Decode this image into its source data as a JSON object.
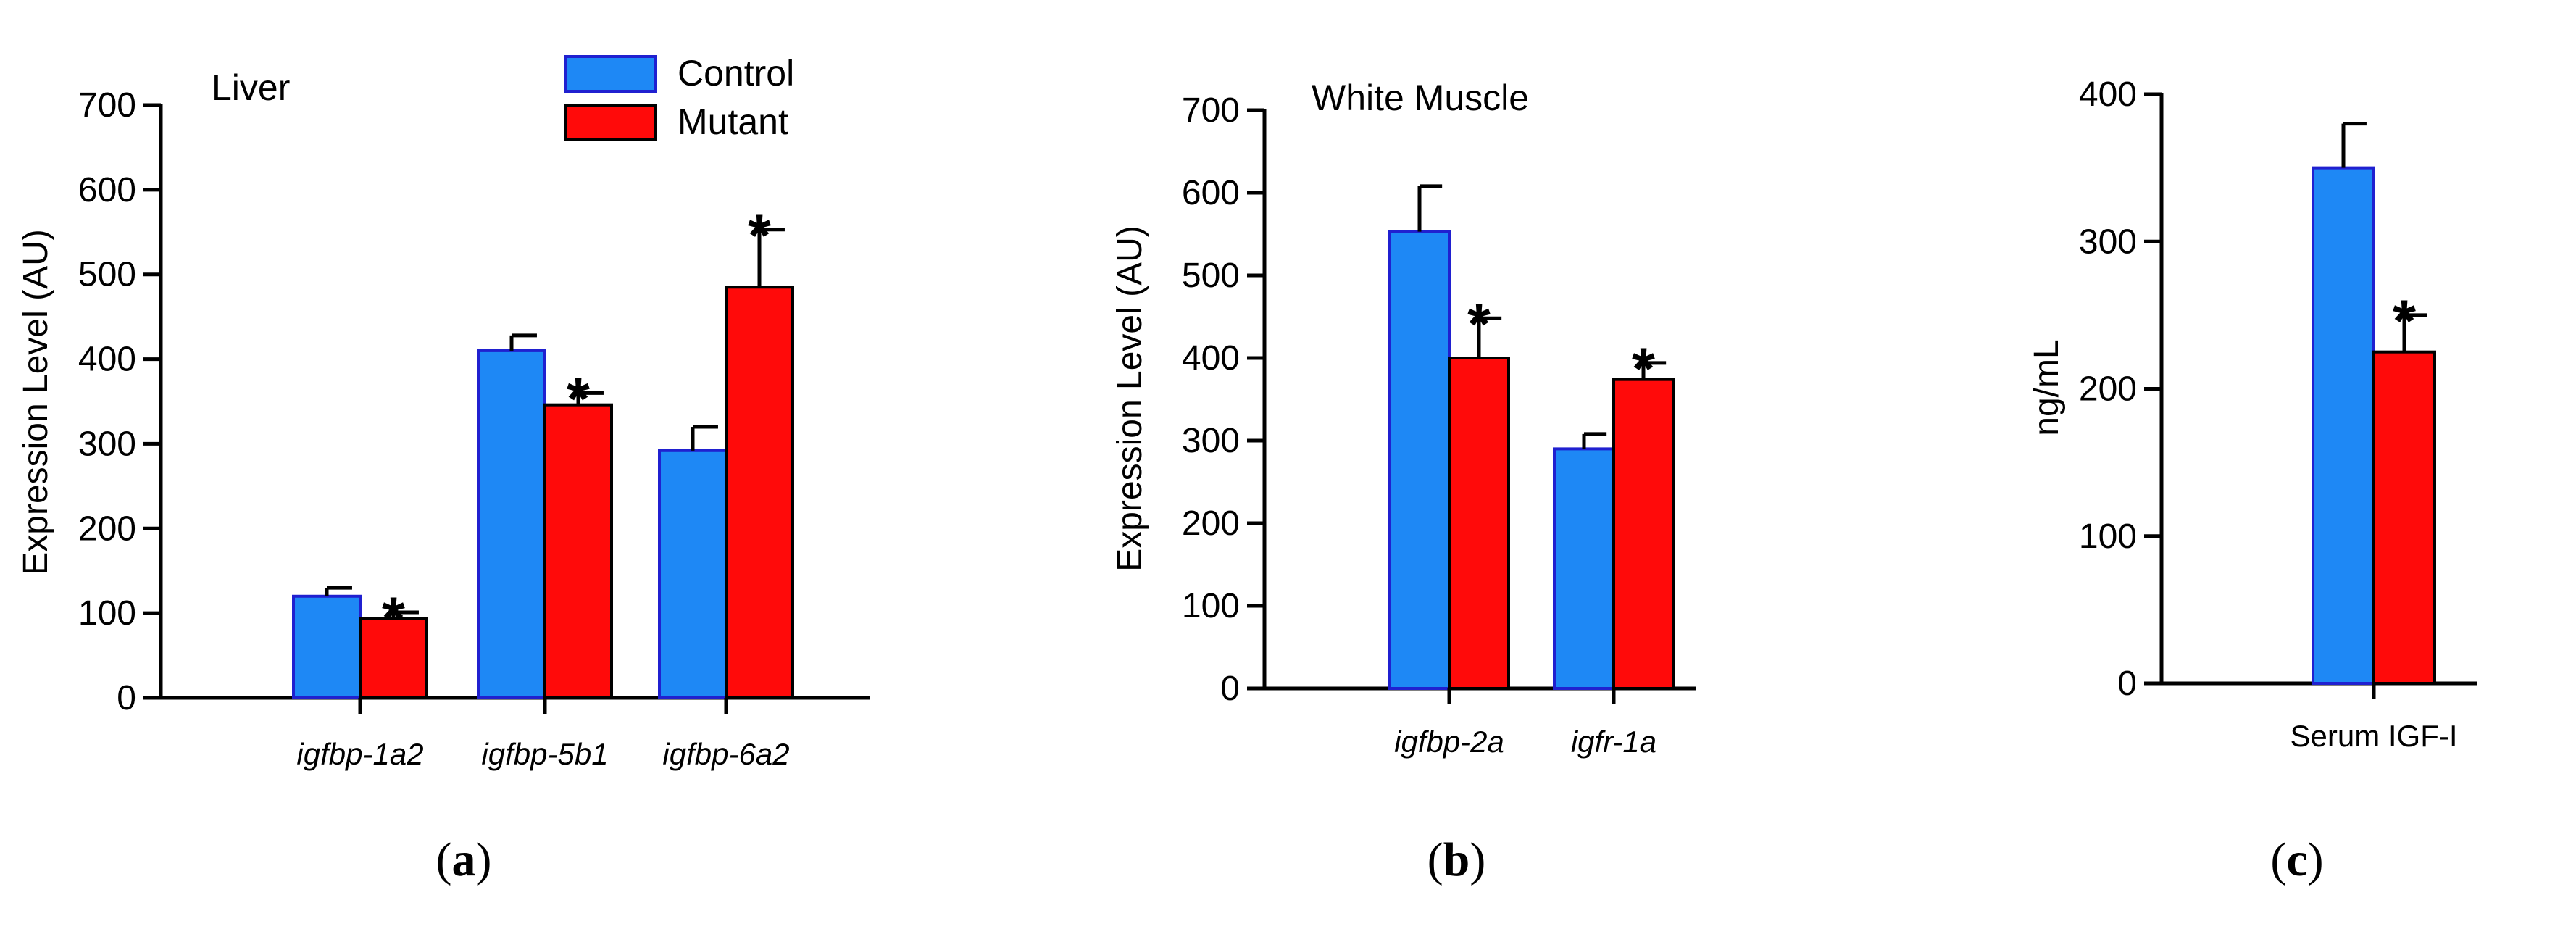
{
  "colors": {
    "control": "#1e88f5",
    "control_edge": "#2020d0",
    "mutant": "#ff0a0a",
    "mutant_edge": "#000000"
  },
  "legend": {
    "control": "Control",
    "mutant": "Mutant"
  },
  "chart_data": [
    {
      "type": "bar",
      "panel": "a",
      "caption_letter": "a",
      "title": "Liver",
      "ylabel": "Expression Level (AU)",
      "ylim": [
        0,
        700
      ],
      "yticks": [
        0,
        100,
        200,
        300,
        400,
        500,
        600,
        700
      ],
      "yticklabels": [
        "0",
        "100",
        "200",
        "300",
        "400",
        "500",
        "600",
        "700"
      ],
      "categories": [
        "igfbp-1a2",
        "igfbp-5b1",
        "igfbp-6a2"
      ],
      "series": [
        {
          "name": "Control",
          "values": [
            120,
            410,
            292
          ],
          "errors": [
            10,
            18,
            28
          ],
          "significant": [
            false,
            false,
            false
          ]
        },
        {
          "name": "Mutant",
          "values": [
            94,
            346,
            485
          ],
          "errors": [
            7,
            14,
            68
          ],
          "significant": [
            true,
            true,
            true
          ]
        }
      ],
      "significance_marker": "*"
    },
    {
      "type": "bar",
      "panel": "b",
      "caption_letter": "b",
      "title": "White Muscle",
      "ylabel": "Expression Level (AU)",
      "ylim": [
        0,
        700
      ],
      "yticks": [
        0,
        100,
        200,
        300,
        400,
        500,
        600,
        700
      ],
      "yticklabels": [
        "0",
        "100",
        "200",
        "300",
        "400",
        "500",
        "600",
        "700"
      ],
      "categories": [
        "igfbp-2a",
        "igfr-1a"
      ],
      "series": [
        {
          "name": "Control",
          "values": [
            553,
            290
          ],
          "errors": [
            55,
            18
          ],
          "significant": [
            false,
            false
          ]
        },
        {
          "name": "Mutant",
          "values": [
            400,
            374
          ],
          "errors": [
            48,
            20
          ],
          "significant": [
            true,
            true
          ]
        }
      ],
      "significance_marker": "*"
    },
    {
      "type": "bar",
      "panel": "c",
      "caption_letter": "c",
      "title": "",
      "ylabel": "ng/mL",
      "ylim": [
        0,
        400
      ],
      "yticks": [
        0,
        100,
        200,
        300,
        400
      ],
      "yticklabels": [
        "0",
        "100",
        "200",
        "300",
        "400"
      ],
      "categories": [
        "Serum IGF-I"
      ],
      "series": [
        {
          "name": "Control",
          "values": [
            350
          ],
          "errors": [
            30
          ],
          "significant": [
            false
          ]
        },
        {
          "name": "Mutant",
          "values": [
            225
          ],
          "errors": [
            25
          ],
          "significant": [
            true
          ]
        }
      ],
      "significance_marker": "*"
    }
  ]
}
